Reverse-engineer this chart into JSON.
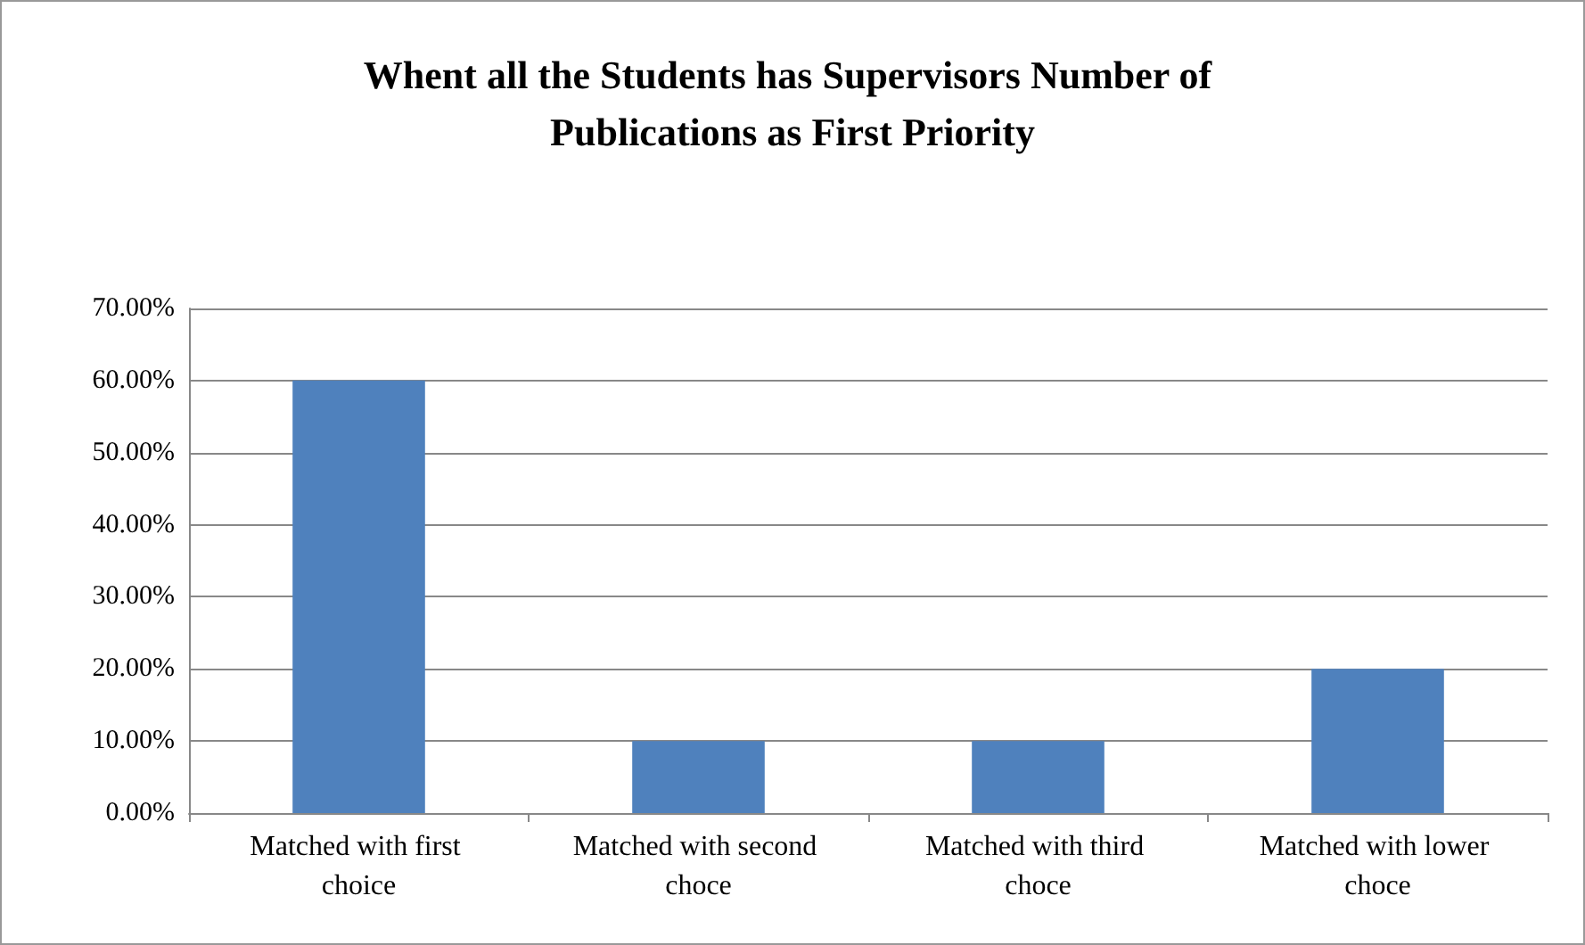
{
  "chart_data": {
    "type": "bar",
    "title": "Whent all the Students has Supervisors Number of Publications as First Priority",
    "categories": [
      "Matched with first choice",
      "Matched with second choce",
      "Matched with third choce",
      "Matched with lower choce"
    ],
    "values": [
      60,
      10,
      10,
      20
    ],
    "color": "#4f81bd",
    "ylim": [
      0,
      70
    ],
    "yticks": [
      {
        "value": 0,
        "label": "0.00%"
      },
      {
        "value": 10,
        "label": "10.00%"
      },
      {
        "value": 20,
        "label": "20.00%"
      },
      {
        "value": 30,
        "label": "30.00%"
      },
      {
        "value": 40,
        "label": "40.00%"
      },
      {
        "value": 50,
        "label": "50.00%"
      },
      {
        "value": 60,
        "label": "60.00%"
      },
      {
        "value": 70,
        "label": "70.00%"
      }
    ],
    "grid": "y"
  }
}
